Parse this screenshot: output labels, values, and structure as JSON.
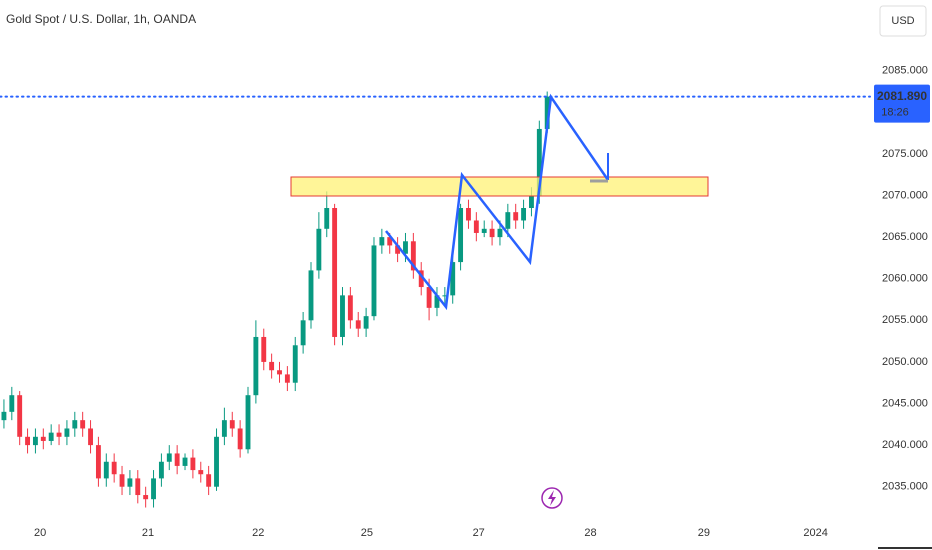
{
  "chart_data": {
    "type": "candlestick",
    "title": "Gold Spot / U.S. Dollar, 1h, OANDA",
    "currency": "USD",
    "up_color": "#089981",
    "down_color": "#f23645",
    "open": [
      2043,
      2044,
      2046,
      2041,
      2040,
      2041,
      2040.5,
      2041.5,
      2041,
      2042,
      2043,
      2042,
      2040,
      2036,
      2038,
      2036.5,
      2035,
      2036,
      2034,
      2033.5,
      2036,
      2038,
      2039,
      2037.5,
      2038.5,
      2037,
      2036.5,
      2035,
      2041,
      2043,
      2042,
      2039.5,
      2046,
      2053,
      2050,
      2049,
      2048.5,
      2047.5,
      2052,
      2055,
      2061,
      2066,
      2068.5,
      2053,
      2058,
      2055,
      2054,
      2055.5,
      2064,
      2065,
      2064,
      2063,
      2064.5,
      2061,
      2059,
      2056.5,
      2058,
      2058,
      2062,
      2068.5,
      2067,
      2065.5,
      2066,
      2065,
      2066,
      2068,
      2067,
      2068.5,
      2070,
      2078
    ],
    "high": [
      2045.5,
      2047,
      2046.5,
      2042,
      2042,
      2042,
      2042.5,
      2042.5,
      2043,
      2044,
      2044,
      2043,
      2041,
      2039,
      2039,
      2037.5,
      2037,
      2037,
      2035,
      2037,
      2039,
      2040,
      2040,
      2039,
      2039.5,
      2038,
      2037.5,
      2042,
      2044.5,
      2044,
      2043,
      2047,
      2055,
      2054,
      2051,
      2050,
      2049.5,
      2053,
      2056,
      2062,
      2068,
      2070.5,
      2069,
      2059,
      2059,
      2056,
      2056.5,
      2065,
      2066,
      2065.5,
      2065,
      2065.5,
      2065.5,
      2062,
      2060,
      2059,
      2059,
      2063,
      2069,
      2069.5,
      2068,
      2067,
      2067,
      2067,
      2069,
      2069,
      2069.5,
      2071,
      2079,
      2082.5
    ],
    "low": [
      2042,
      2043,
      2040,
      2039,
      2039,
      2039.5,
      2040,
      2040,
      2040,
      2041,
      2041,
      2039,
      2035,
      2035,
      2035.5,
      2034,
      2034,
      2033,
      2032.5,
      2032.5,
      2035,
      2037,
      2036.5,
      2037,
      2036,
      2035.5,
      2034,
      2034.5,
      2040,
      2041,
      2038.5,
      2039,
      2045,
      2049,
      2048,
      2047.5,
      2046.5,
      2046.5,
      2051,
      2054,
      2060,
      2065,
      2052,
      2052,
      2054,
      2053,
      2053,
      2055,
      2063,
      2063,
      2062,
      2062,
      2060,
      2058,
      2055,
      2055.5,
      2057,
      2057,
      2061,
      2066,
      2064.5,
      2065,
      2064,
      2064,
      2065,
      2066,
      2066,
      2067.5,
      2069,
      2077.5
    ],
    "close": [
      2044,
      2046,
      2041,
      2040,
      2041,
      2040.5,
      2041.5,
      2041,
      2042,
      2043,
      2042,
      2040,
      2036,
      2038,
      2036.5,
      2035,
      2036,
      2034,
      2033.5,
      2036,
      2038,
      2039,
      2037.5,
      2038.5,
      2037,
      2036.5,
      2035,
      2041,
      2043,
      2042,
      2039.5,
      2046,
      2053,
      2050,
      2049,
      2048.5,
      2047.5,
      2052,
      2055,
      2061,
      2066,
      2068.5,
      2053,
      2058,
      2055,
      2054,
      2055.5,
      2064,
      2065,
      2064,
      2063,
      2064.5,
      2061,
      2059,
      2056.5,
      2058,
      2058,
      2062,
      2068.5,
      2067,
      2065.5,
      2066,
      2065,
      2066,
      2068,
      2067,
      2068.5,
      2070,
      2078,
      2081.89
    ],
    "last_price": 2081.89,
    "last_price_label": "2081.890",
    "countdown": "18:26",
    "xlim": [
      -0.5,
      110
    ],
    "xticks": [
      {
        "value": 4.6,
        "label": "20"
      },
      {
        "value": 18.3,
        "label": "21"
      },
      {
        "value": 32.3,
        "label": "22"
      },
      {
        "value": 46.1,
        "label": "25"
      },
      {
        "value": 60.3,
        "label": "27"
      },
      {
        "value": 74.5,
        "label": "28"
      },
      {
        "value": 88.9,
        "label": "29"
      },
      {
        "value": 103.1,
        "label": "2024"
      }
    ],
    "ylim": [
      2031,
      2093.5
    ],
    "yticks": [
      {
        "value": 2035,
        "label": "2035.000"
      },
      {
        "value": 2040,
        "label": "2040.000"
      },
      {
        "value": 2045,
        "label": "2045.000"
      },
      {
        "value": 2050,
        "label": "2050.000"
      },
      {
        "value": 2055,
        "label": "2055.000"
      },
      {
        "value": 2060,
        "label": "2060.000"
      },
      {
        "value": 2065,
        "label": "2065.000"
      },
      {
        "value": 2070,
        "label": "2070.000"
      },
      {
        "value": 2075,
        "label": "2075.000"
      },
      {
        "value": 2080,
        "label": "2080.000"
      },
      {
        "value": 2085,
        "label": "2085.000"
      }
    ],
    "grid": false
  }
}
